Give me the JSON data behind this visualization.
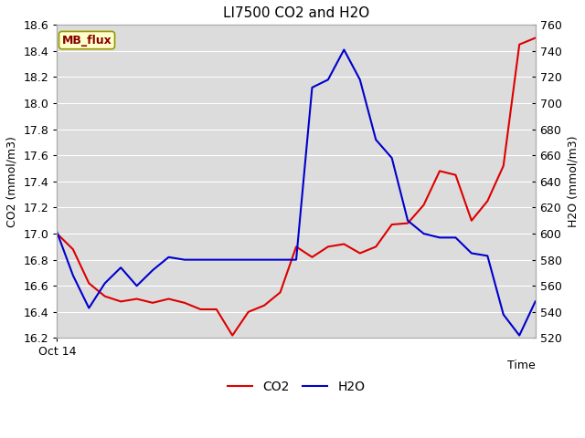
{
  "title": "LI7500 CO2 and H2O",
  "xlabel": "Time",
  "ylabel_left": "CO2 (mmol/m3)",
  "ylabel_right": "H2O (mmol/m3)",
  "x_label_start": "Oct 14",
  "annotation_text": "MB_flux",
  "annotation_bg": "#ffffcc",
  "annotation_fg": "#880000",
  "co2_color": "#dd0000",
  "h2o_color": "#0000cc",
  "ylim_left": [
    16.2,
    18.6
  ],
  "ylim_right": [
    520,
    760
  ],
  "yticks_left": [
    16.2,
    16.4,
    16.6,
    16.8,
    17.0,
    17.2,
    17.4,
    17.6,
    17.8,
    18.0,
    18.2,
    18.4,
    18.6
  ],
  "yticks_right": [
    520,
    540,
    560,
    580,
    600,
    620,
    640,
    660,
    680,
    700,
    720,
    740,
    760
  ],
  "plot_bg": "#dcdcdc",
  "fig_bg": "#ffffff",
  "grid_color": "#ffffff",
  "co2_x": [
    0,
    1,
    2,
    3,
    4,
    5,
    6,
    7,
    8,
    9,
    10,
    11,
    12,
    13,
    14,
    15,
    16,
    17,
    18,
    19,
    20,
    21,
    22,
    23,
    24,
    25,
    26,
    27,
    28,
    29,
    30
  ],
  "co2_y": [
    17.0,
    16.88,
    16.62,
    16.52,
    16.48,
    16.5,
    16.47,
    16.5,
    16.47,
    16.42,
    16.42,
    16.22,
    16.4,
    16.45,
    16.55,
    16.9,
    16.82,
    16.9,
    16.92,
    16.85,
    16.9,
    17.07,
    17.08,
    17.22,
    17.48,
    17.45,
    17.1,
    17.25,
    17.52,
    18.45,
    18.5
  ],
  "h2o_x": [
    0,
    1,
    2,
    3,
    4,
    5,
    6,
    7,
    8,
    9,
    10,
    11,
    12,
    13,
    14,
    15,
    16,
    17,
    18,
    19,
    20,
    21,
    22,
    23,
    24,
    25,
    26,
    27,
    28,
    29,
    30
  ],
  "h2o_y": [
    601,
    568,
    543,
    562,
    574,
    560,
    572,
    582,
    580,
    580,
    580,
    580,
    580,
    580,
    580,
    580,
    712,
    718,
    741,
    718,
    672,
    658,
    610,
    600,
    597,
    597,
    585,
    583,
    538,
    522,
    548
  ],
  "legend_labels": [
    "CO2",
    "H2O"
  ],
  "linewidth": 1.5,
  "title_fontsize": 11,
  "axis_fontsize": 9,
  "ylabel_fontsize": 9
}
